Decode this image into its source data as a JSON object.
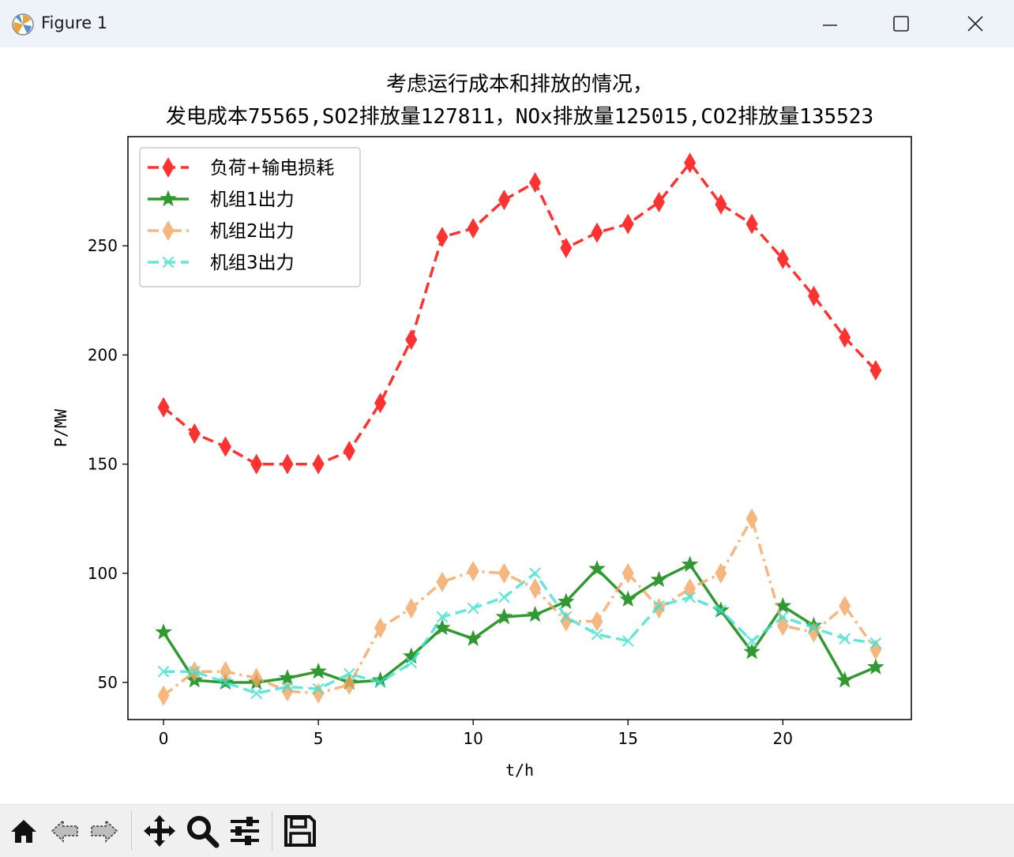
{
  "window": {
    "title": "Figure 1",
    "icons": {
      "app": "matplotlib-icon",
      "minimize": "minimize-icon",
      "maximize": "maximize-icon",
      "close": "close-icon"
    }
  },
  "toolbar": {
    "buttons": [
      {
        "name": "home-button",
        "icon": "home-icon"
      },
      {
        "name": "back-button",
        "icon": "arrow-left-icon"
      },
      {
        "name": "forward-button",
        "icon": "arrow-right-icon"
      },
      {
        "name": "pan-button",
        "icon": "move-icon"
      },
      {
        "name": "zoom-button",
        "icon": "magnifier-icon"
      },
      {
        "name": "configure-subplots-button",
        "icon": "sliders-icon"
      },
      {
        "name": "save-button",
        "icon": "floppy-disk-icon"
      }
    ]
  },
  "chart_data": {
    "type": "line",
    "title_line1": "考虑运行成本和排放的情况，",
    "title_line2": "发电成本75565,SO2排放量127811，NOx排放量125015,CO2排放量135523",
    "xlabel": "t/h",
    "ylabel": "P/MW",
    "xlim": [
      -1.15,
      24.15
    ],
    "ylim": [
      33,
      300
    ],
    "x": [
      0,
      1,
      2,
      3,
      4,
      5,
      6,
      7,
      8,
      9,
      10,
      11,
      12,
      13,
      14,
      15,
      16,
      17,
      18,
      19,
      20,
      21,
      22,
      23
    ],
    "xticks": [
      0,
      5,
      10,
      15,
      20
    ],
    "yticks": [
      50,
      100,
      150,
      200,
      250
    ],
    "grid": false,
    "legend_position": "upper-left",
    "series": [
      {
        "name": "负荷+输电损耗",
        "color": "#ff0000",
        "linestyle": "dashed",
        "marker": "thin-diamond",
        "values": [
          176,
          164,
          158,
          150,
          150,
          150,
          156,
          178,
          207,
          254,
          258,
          271,
          279,
          249,
          256,
          260,
          270,
          288,
          269,
          260,
          244,
          227,
          208,
          193
        ]
      },
      {
        "name": "机组1出力",
        "color": "#008000",
        "linestyle": "solid",
        "marker": "star",
        "values": [
          73,
          51,
          50,
          50,
          52,
          55,
          50,
          51,
          62,
          75,
          70,
          80,
          81,
          87,
          102,
          88,
          97,
          104,
          83,
          64,
          85,
          76,
          51,
          57
        ]
      },
      {
        "name": "机组2出力",
        "color": "#f4a460",
        "linestyle": "dashdot",
        "marker": "thin-diamond",
        "values": [
          44,
          55,
          55,
          52,
          46,
          45,
          49,
          75,
          84,
          96,
          101,
          100,
          93,
          78,
          78,
          100,
          84,
          93,
          100,
          125,
          76,
          73,
          85,
          65
        ]
      },
      {
        "name": "机组3出力",
        "color": "#40e0d0",
        "linestyle": "dashed",
        "marker": "x",
        "values": [
          55,
          55,
          50,
          45,
          48,
          47,
          54,
          50,
          59,
          80,
          84,
          89,
          100,
          80,
          72,
          69,
          85,
          89,
          83,
          69,
          80,
          75,
          70,
          68
        ]
      }
    ]
  }
}
